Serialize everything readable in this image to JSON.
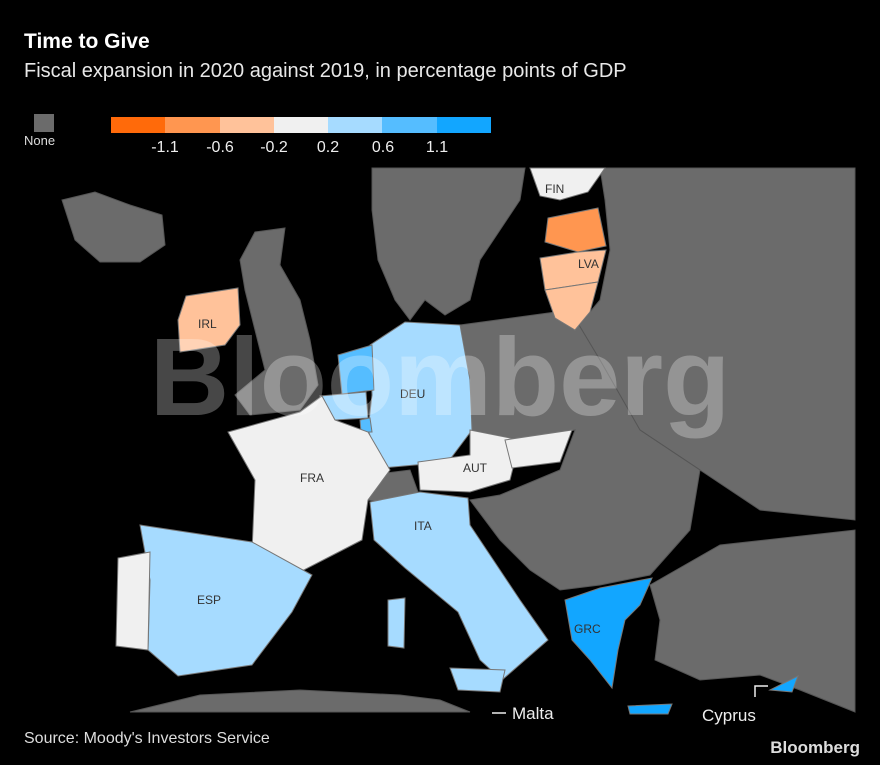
{
  "title": "Time to Give",
  "subtitle": "Fiscal expansion in 2020 against 2019, in percentage points of GDP",
  "legend": {
    "none_label": "None",
    "none_color": "#6b6b6b",
    "colors": [
      "#ff6a0a",
      "#ff9650",
      "#ffc29a",
      "#f0f0f0",
      "#a6dbff",
      "#55bdff",
      "#12a6ff"
    ],
    "ticks": [
      "-1.1",
      "-0.6",
      "-0.2",
      "0.2",
      "0.6",
      "1.1"
    ]
  },
  "countries": {
    "FIN": {
      "label": "FIN",
      "bin": 3
    },
    "EST": {
      "bin": 1
    },
    "LVA": {
      "label": "LVA",
      "bin": 2
    },
    "LTU": {
      "bin": 2
    },
    "IRL": {
      "label": "IRL",
      "bin": 2
    },
    "DEU": {
      "label": "DEU",
      "bin": 4
    },
    "NLD": {
      "bin": 5
    },
    "BEL": {
      "bin": 4
    },
    "LUX": {
      "bin": 5
    },
    "FRA": {
      "label": "FRA",
      "bin": 3
    },
    "AUT": {
      "label": "AUT",
      "bin": 3
    },
    "SVK": {
      "bin": 3
    },
    "ITA": {
      "label": "ITA",
      "bin": 4
    },
    "ESP": {
      "label": "ESP",
      "bin": 4
    },
    "PRT": {
      "bin": 3
    },
    "GRC": {
      "label": "GRC",
      "bin": 6
    },
    "CYP": {
      "bin": 6
    }
  },
  "annotations": {
    "malta": "Malta",
    "cyprus": "Cyprus"
  },
  "watermark": "Bloomberg",
  "source": "Source: Moody's Investors Service",
  "logo": "Bloomberg"
}
